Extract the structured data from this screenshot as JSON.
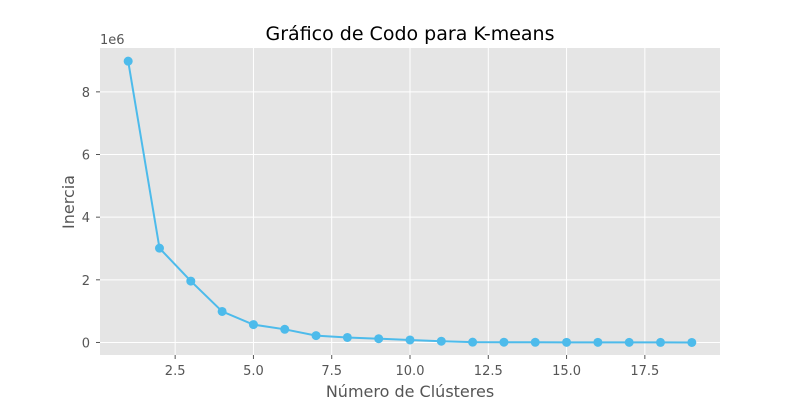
{
  "chart_data": {
    "type": "line",
    "title": "Gráfico de Codo para K-means",
    "xlabel": "Número de Clústeres",
    "ylabel": "Inercia",
    "y_offset_label": "1e6",
    "y_scale_factor": 1000000,
    "xlim": [
      0.1,
      19.9
    ],
    "ylim": [
      -400000,
      9400000
    ],
    "xticks": [
      2.5,
      5.0,
      7.5,
      10.0,
      12.5,
      15.0,
      17.5
    ],
    "xtick_labels": [
      "2.5",
      "5.0",
      "7.5",
      "10.0",
      "12.5",
      "15.0",
      "17.5"
    ],
    "yticks": [
      0,
      2000000,
      4000000,
      6000000,
      8000000
    ],
    "ytick_labels": [
      "0",
      "2",
      "4",
      "6",
      "8"
    ],
    "grid": true,
    "style": "ggplot",
    "colors": {
      "plot_background": "#E5E5E5",
      "grid": "#FFFFFF",
      "line": "#4DBBEB",
      "text": "#555555",
      "title": "#000000"
    },
    "series": [
      {
        "marker": "circle",
        "x": [
          1,
          2,
          3,
          4,
          5,
          6,
          7,
          8,
          9,
          10,
          11,
          12,
          13,
          14,
          15,
          16,
          17,
          18,
          19
        ],
        "y": [
          8980000,
          3010000,
          1960000,
          990000,
          570000,
          420000,
          220000,
          160000,
          120000,
          80000,
          40000,
          10000,
          8000,
          6000,
          5000,
          4000,
          3000,
          2000,
          1000
        ]
      }
    ]
  }
}
